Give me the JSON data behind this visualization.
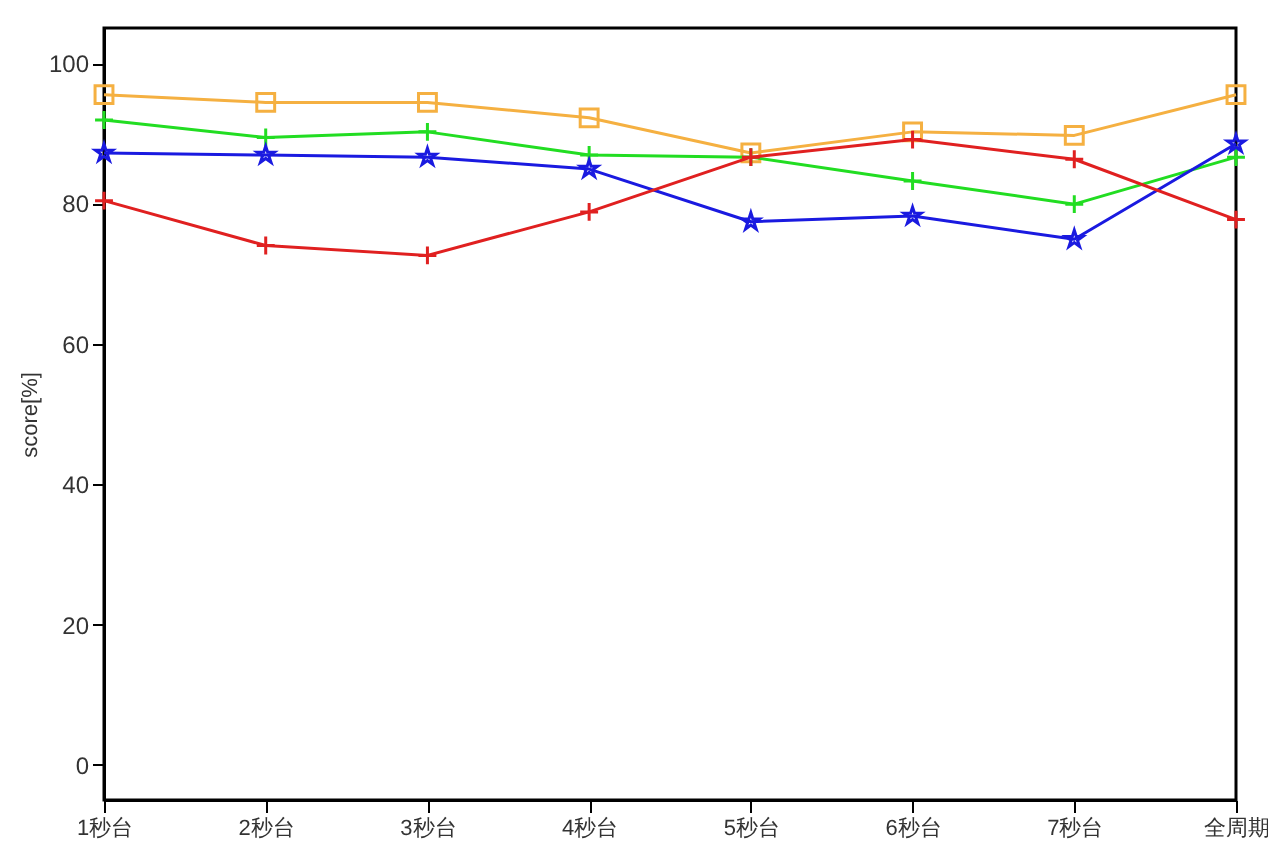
{
  "chart_data": {
    "type": "line",
    "ylabel": "score[%]",
    "categories": [
      "1秒台",
      "2秒台",
      "3秒台",
      "4秒台",
      "5秒台",
      "6秒台",
      "7秒台",
      "全周期"
    ],
    "ylim": [
      -5,
      105
    ],
    "yticks": [
      0,
      20,
      40,
      60,
      80,
      100
    ],
    "grid": false,
    "series": [
      {
        "color": "#f5b041",
        "marker": "square",
        "values": [
          95.5,
          94.4,
          94.4,
          92.2,
          87.2,
          90.2,
          89.7,
          95.5
        ]
      },
      {
        "color": "#22dd22",
        "marker": "cross",
        "values": [
          91.9,
          89.4,
          90.2,
          86.9,
          86.6,
          83.2,
          79.9,
          86.6
        ]
      },
      {
        "color": "#1a1ae0",
        "marker": "star",
        "values": [
          87.2,
          86.9,
          86.6,
          84.9,
          77.4,
          78.2,
          74.9,
          88.5
        ]
      },
      {
        "color": "#e02020",
        "marker": "cross",
        "values": [
          80.4,
          74.0,
          72.6,
          78.8,
          86.6,
          89.1,
          86.3,
          77.7
        ]
      }
    ]
  }
}
